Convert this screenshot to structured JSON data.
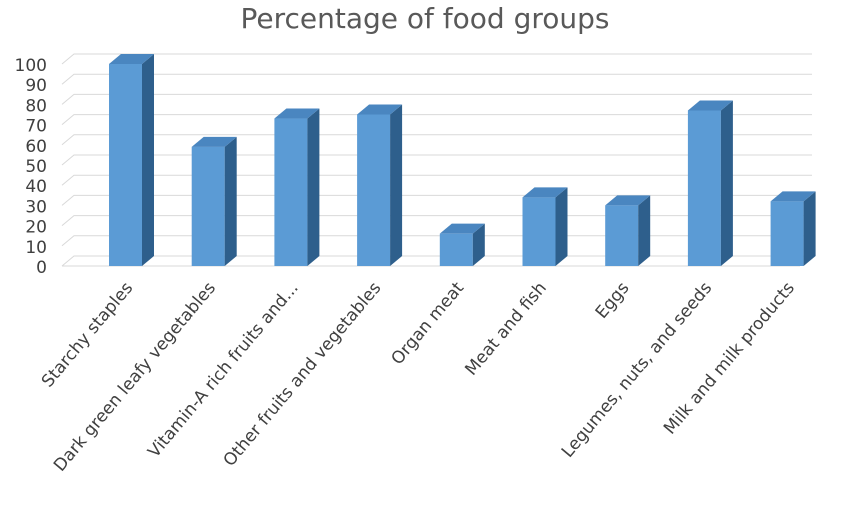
{
  "chart_data": {
    "type": "bar",
    "title": "Percentage of food groups",
    "xlabel": "",
    "ylabel": "",
    "categories": [
      "Starchy staples",
      "Dark green leafy vegetables",
      "Vitamin-A rich fruits and...",
      "Other fruits and vegetables",
      "Organ meat",
      "Meat and fish",
      "Eggs",
      "Legumes, nuts, and seeds",
      "Milk and milk products"
    ],
    "values": [
      100,
      59,
      73,
      75,
      16,
      34,
      30,
      77,
      32
    ],
    "ylim": [
      0,
      100
    ],
    "yticks": [
      "0",
      "10",
      "20",
      "30",
      "40",
      "50",
      "60",
      "70",
      "80",
      "90",
      "100"
    ],
    "grid": true,
    "legend": "none",
    "style": "3d-column",
    "colors": {
      "bar_front": "#5b9bd5",
      "bar_side": "#2e5f8c",
      "bar_top": "#4a86c0",
      "grid": "#d9d9d9",
      "text": "#404040"
    }
  }
}
